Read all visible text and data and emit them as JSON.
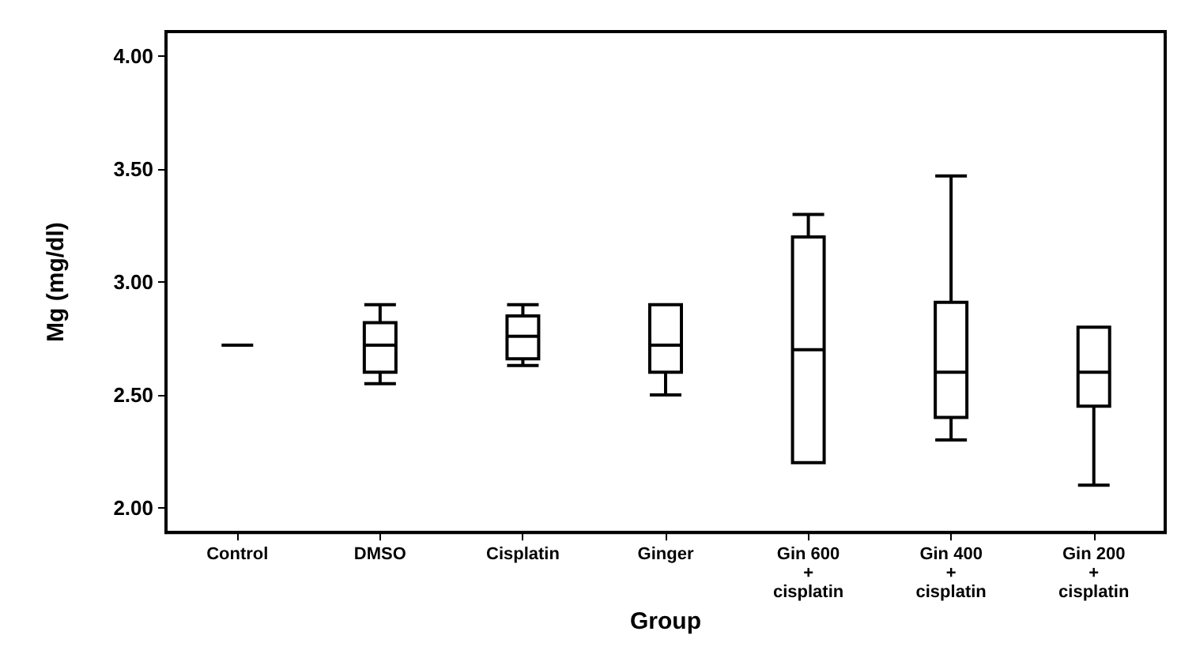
{
  "chart_data": {
    "type": "box",
    "xlabel": "Group",
    "ylabel": "Mg (mg/dl)",
    "categories": [
      "Control",
      "DMSO",
      "Cisplatin",
      "Ginger",
      "Gin 600\n+\ncisplatin",
      "Gin 400\n+\ncisplatin",
      "Gin 200\n+\ncisplatin"
    ],
    "series": [
      {
        "color": "#000000",
        "boxes": [
          {
            "low": 2.72,
            "q1": 2.72,
            "median": 2.72,
            "q3": 2.72,
            "high": 2.72
          },
          {
            "low": 2.55,
            "q1": 2.6,
            "median": 2.72,
            "q3": 2.82,
            "high": 2.9
          },
          {
            "low": 2.63,
            "q1": 2.66,
            "median": 2.76,
            "q3": 2.85,
            "high": 2.9
          },
          {
            "low": 2.5,
            "q1": 2.6,
            "median": 2.72,
            "q3": 2.9,
            "high": 2.9
          },
          {
            "low": 2.2,
            "q1": 2.2,
            "median": 2.7,
            "q3": 3.2,
            "high": 3.3
          },
          {
            "low": 2.3,
            "q1": 2.4,
            "median": 2.6,
            "q3": 2.91,
            "high": 3.47
          },
          {
            "low": 2.1,
            "q1": 2.45,
            "median": 2.6,
            "q3": 2.8,
            "high": 2.8
          }
        ]
      }
    ],
    "ylim": [
      1.89,
      4.11
    ],
    "yticks": [
      {
        "value": 2,
        "label": "2.00"
      },
      {
        "value": 2.5,
        "label": "2.50"
      },
      {
        "value": 3,
        "label": "3.00"
      },
      {
        "value": 3.5,
        "label": "3.50"
      },
      {
        "value": 4,
        "label": "4.00"
      }
    ],
    "grid": false
  }
}
